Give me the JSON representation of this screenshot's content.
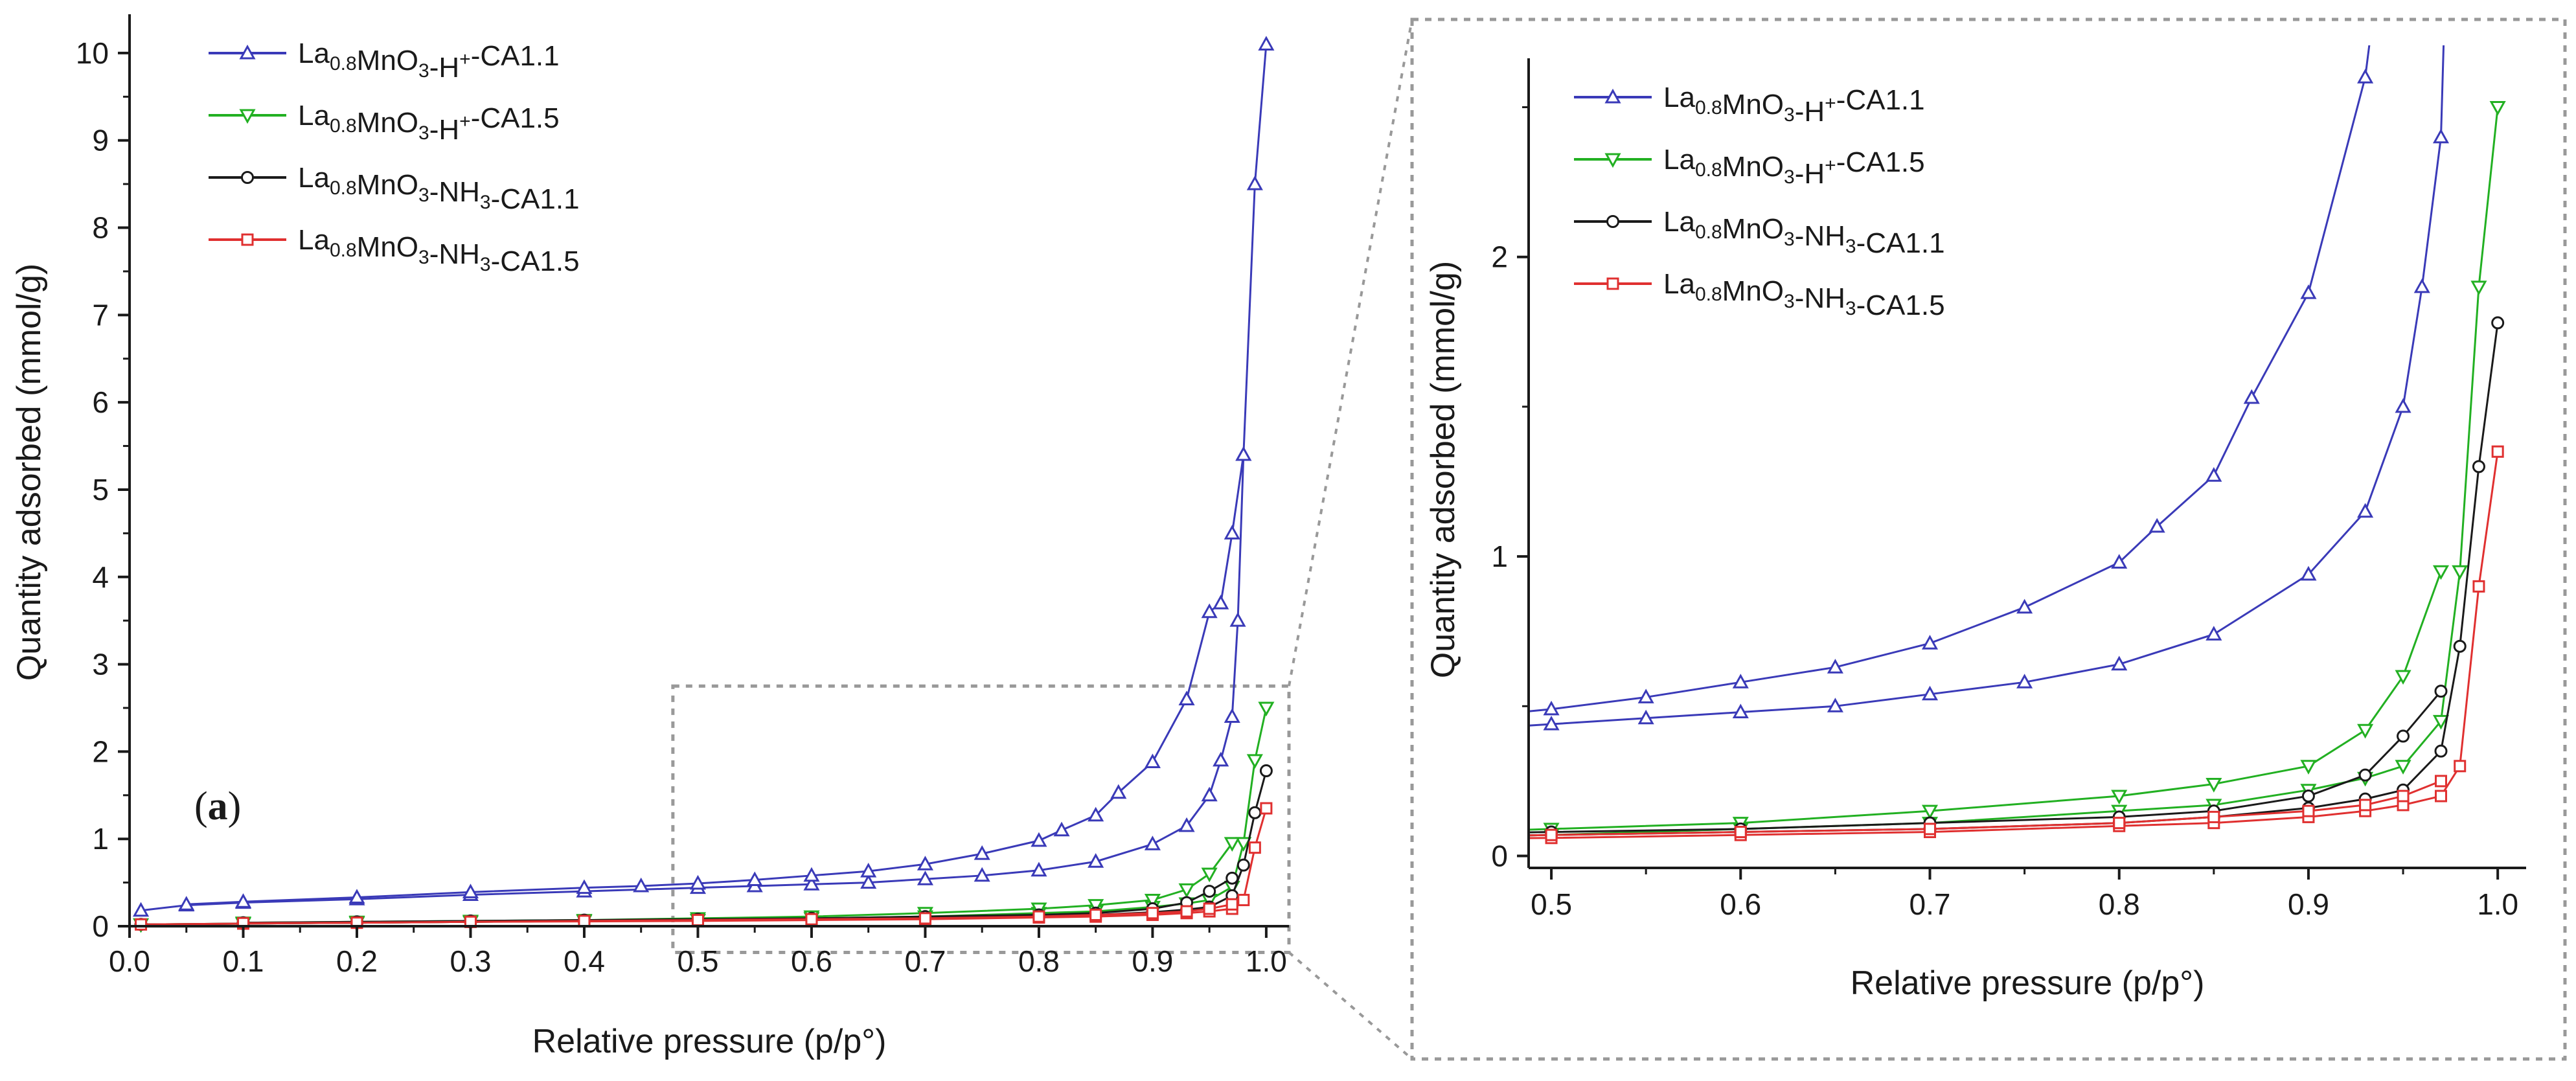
{
  "chart_data": [
    {
      "panel": "left",
      "type": "line",
      "panel_label": {
        "open": "(",
        "letter": "a",
        "close": ")"
      },
      "xlabel": "Relative pressure (p/p°)",
      "ylabel": "Quantity adsorbed (mmol/g)",
      "xlim": [
        0.0,
        1.02
      ],
      "ylim": [
        0,
        10.4
      ],
      "xticks": [
        "0.0",
        "0.1",
        "0.2",
        "0.3",
        "0.4",
        "0.5",
        "0.6",
        "0.7",
        "0.8",
        "0.9",
        "1.0"
      ],
      "yticks": [
        "0",
        "1",
        "2",
        "3",
        "4",
        "5",
        "6",
        "7",
        "8",
        "9",
        "10"
      ],
      "legend_position": "top-left",
      "series": [
        {
          "id": "s1",
          "name": "La0.8MnO3-H+-CA1.1",
          "color": "#3a3ab8",
          "marker": "triangle-up",
          "adsorption": {
            "x": [
              0.01,
              0.05,
              0.1,
              0.2,
              0.3,
              0.4,
              0.5,
              0.55,
              0.6,
              0.65,
              0.7,
              0.75,
              0.8,
              0.85,
              0.9,
              0.93,
              0.95,
              0.96,
              0.97,
              0.975,
              0.98,
              0.99,
              1.0
            ],
            "y": [
              0.18,
              0.24,
              0.27,
              0.31,
              0.36,
              0.4,
              0.44,
              0.46,
              0.48,
              0.5,
              0.54,
              0.58,
              0.64,
              0.74,
              0.94,
              1.15,
              1.5,
              1.9,
              2.4,
              3.5,
              5.4,
              8.5,
              10.1
            ]
          },
          "desorption": {
            "x": [
              0.98,
              0.97,
              0.96,
              0.95,
              0.93,
              0.9,
              0.87,
              0.85,
              0.82,
              0.8,
              0.75,
              0.7,
              0.65,
              0.6,
              0.55,
              0.5,
              0.45,
              0.4,
              0.3,
              0.2,
              0.1,
              0.05
            ],
            "y": [
              5.4,
              4.5,
              3.7,
              3.6,
              2.6,
              1.88,
              1.53,
              1.27,
              1.1,
              0.98,
              0.83,
              0.71,
              0.63,
              0.58,
              0.53,
              0.49,
              0.46,
              0.44,
              0.39,
              0.33,
              0.28,
              0.25
            ]
          }
        },
        {
          "id": "s2",
          "name": "La0.8MnO3-H+-CA1.5",
          "color": "#22b022",
          "marker": "triangle-down",
          "adsorption": {
            "x": [
              0.01,
              0.1,
              0.2,
              0.3,
              0.4,
              0.5,
              0.6,
              0.7,
              0.8,
              0.85,
              0.9,
              0.93,
              0.95,
              0.97,
              0.98,
              0.99,
              1.0
            ],
            "y": [
              0.02,
              0.03,
              0.04,
              0.05,
              0.06,
              0.07,
              0.09,
              0.11,
              0.15,
              0.17,
              0.22,
              0.26,
              0.3,
              0.45,
              0.95,
              1.9,
              2.5
            ]
          },
          "desorption": {
            "x": [
              0.97,
              0.95,
              0.93,
              0.9,
              0.85,
              0.8,
              0.7,
              0.6,
              0.5,
              0.4,
              0.3,
              0.2,
              0.1
            ],
            "y": [
              0.95,
              0.6,
              0.42,
              0.3,
              0.24,
              0.2,
              0.15,
              0.11,
              0.09,
              0.07,
              0.06,
              0.05,
              0.04
            ]
          }
        },
        {
          "id": "s3",
          "name": "La0.8MnO3-NH3-CA1.1",
          "color": "#1a1a1a",
          "marker": "circle",
          "adsorption": {
            "x": [
              0.01,
              0.1,
              0.2,
              0.3,
              0.4,
              0.5,
              0.6,
              0.7,
              0.8,
              0.85,
              0.9,
              0.93,
              0.95,
              0.97,
              0.98,
              0.99,
              1.0
            ],
            "y": [
              0.02,
              0.03,
              0.04,
              0.05,
              0.06,
              0.07,
              0.08,
              0.09,
              0.11,
              0.13,
              0.16,
              0.19,
              0.22,
              0.35,
              0.7,
              1.3,
              1.78
            ]
          },
          "desorption": {
            "x": [
              0.97,
              0.95,
              0.93,
              0.9,
              0.85,
              0.8,
              0.7,
              0.6,
              0.5,
              0.4,
              0.3,
              0.2,
              0.1
            ],
            "y": [
              0.55,
              0.4,
              0.27,
              0.2,
              0.15,
              0.13,
              0.11,
              0.09,
              0.08,
              0.07,
              0.06,
              0.05,
              0.04
            ]
          }
        },
        {
          "id": "s4",
          "name": "La0.8MnO3-NH3-CA1.5",
          "color": "#e03030",
          "marker": "square",
          "adsorption": {
            "x": [
              0.01,
              0.1,
              0.2,
              0.3,
              0.4,
              0.5,
              0.6,
              0.7,
              0.8,
              0.85,
              0.9,
              0.93,
              0.95,
              0.97,
              0.98,
              0.99,
              1.0
            ],
            "y": [
              0.02,
              0.03,
              0.04,
              0.05,
              0.055,
              0.06,
              0.07,
              0.08,
              0.1,
              0.11,
              0.13,
              0.15,
              0.17,
              0.2,
              0.3,
              0.9,
              1.35
            ]
          },
          "desorption": {
            "x": [
              0.97,
              0.95,
              0.93,
              0.9,
              0.85,
              0.8,
              0.7,
              0.6,
              0.5,
              0.4,
              0.3,
              0.2,
              0.1
            ],
            "y": [
              0.25,
              0.2,
              0.17,
              0.15,
              0.13,
              0.11,
              0.09,
              0.08,
              0.07,
              0.06,
              0.05,
              0.04,
              0.035
            ]
          }
        }
      ]
    },
    {
      "panel": "right-zoom",
      "type": "line",
      "xlabel": "Relative pressure (p/p°)",
      "ylabel": "Quantity adsorbed (mmol/g)",
      "xlim": [
        0.488,
        1.015
      ],
      "ylim": [
        -0.04,
        2.62
      ],
      "xticks": [
        "0.5",
        "0.6",
        "0.7",
        "0.8",
        "0.9",
        "1.0"
      ],
      "yticks": [
        "0",
        "1",
        "2"
      ],
      "legend_position": "top-left",
      "series_ref": [
        "s1",
        "s2",
        "s3",
        "s4"
      ]
    }
  ],
  "legend": [
    {
      "id": "s1",
      "base": "La",
      "sub1": "0.8",
      "mid": "MnO",
      "sub2": "3",
      "tail": "-H",
      "sup": "+",
      "end": "-CA1.1"
    },
    {
      "id": "s2",
      "base": "La",
      "sub1": "0.8",
      "mid": "MnO",
      "sub2": "3",
      "tail": "-H",
      "sup": "+",
      "end": "-CA1.5"
    },
    {
      "id": "s3",
      "base": "La",
      "sub1": "0.8",
      "mid": "MnO",
      "sub2": "3",
      "tail": "-NH",
      "sub3": "3",
      "end": "-CA1.1"
    },
    {
      "id": "s4",
      "base": "La",
      "sub1": "0.8",
      "mid": "MnO",
      "sub2": "3",
      "tail": "-NH",
      "sub3": "3",
      "end": "-CA1.5"
    }
  ],
  "colors": {
    "frame_dotted": "#999999",
    "axis": "#1a1a1a"
  }
}
